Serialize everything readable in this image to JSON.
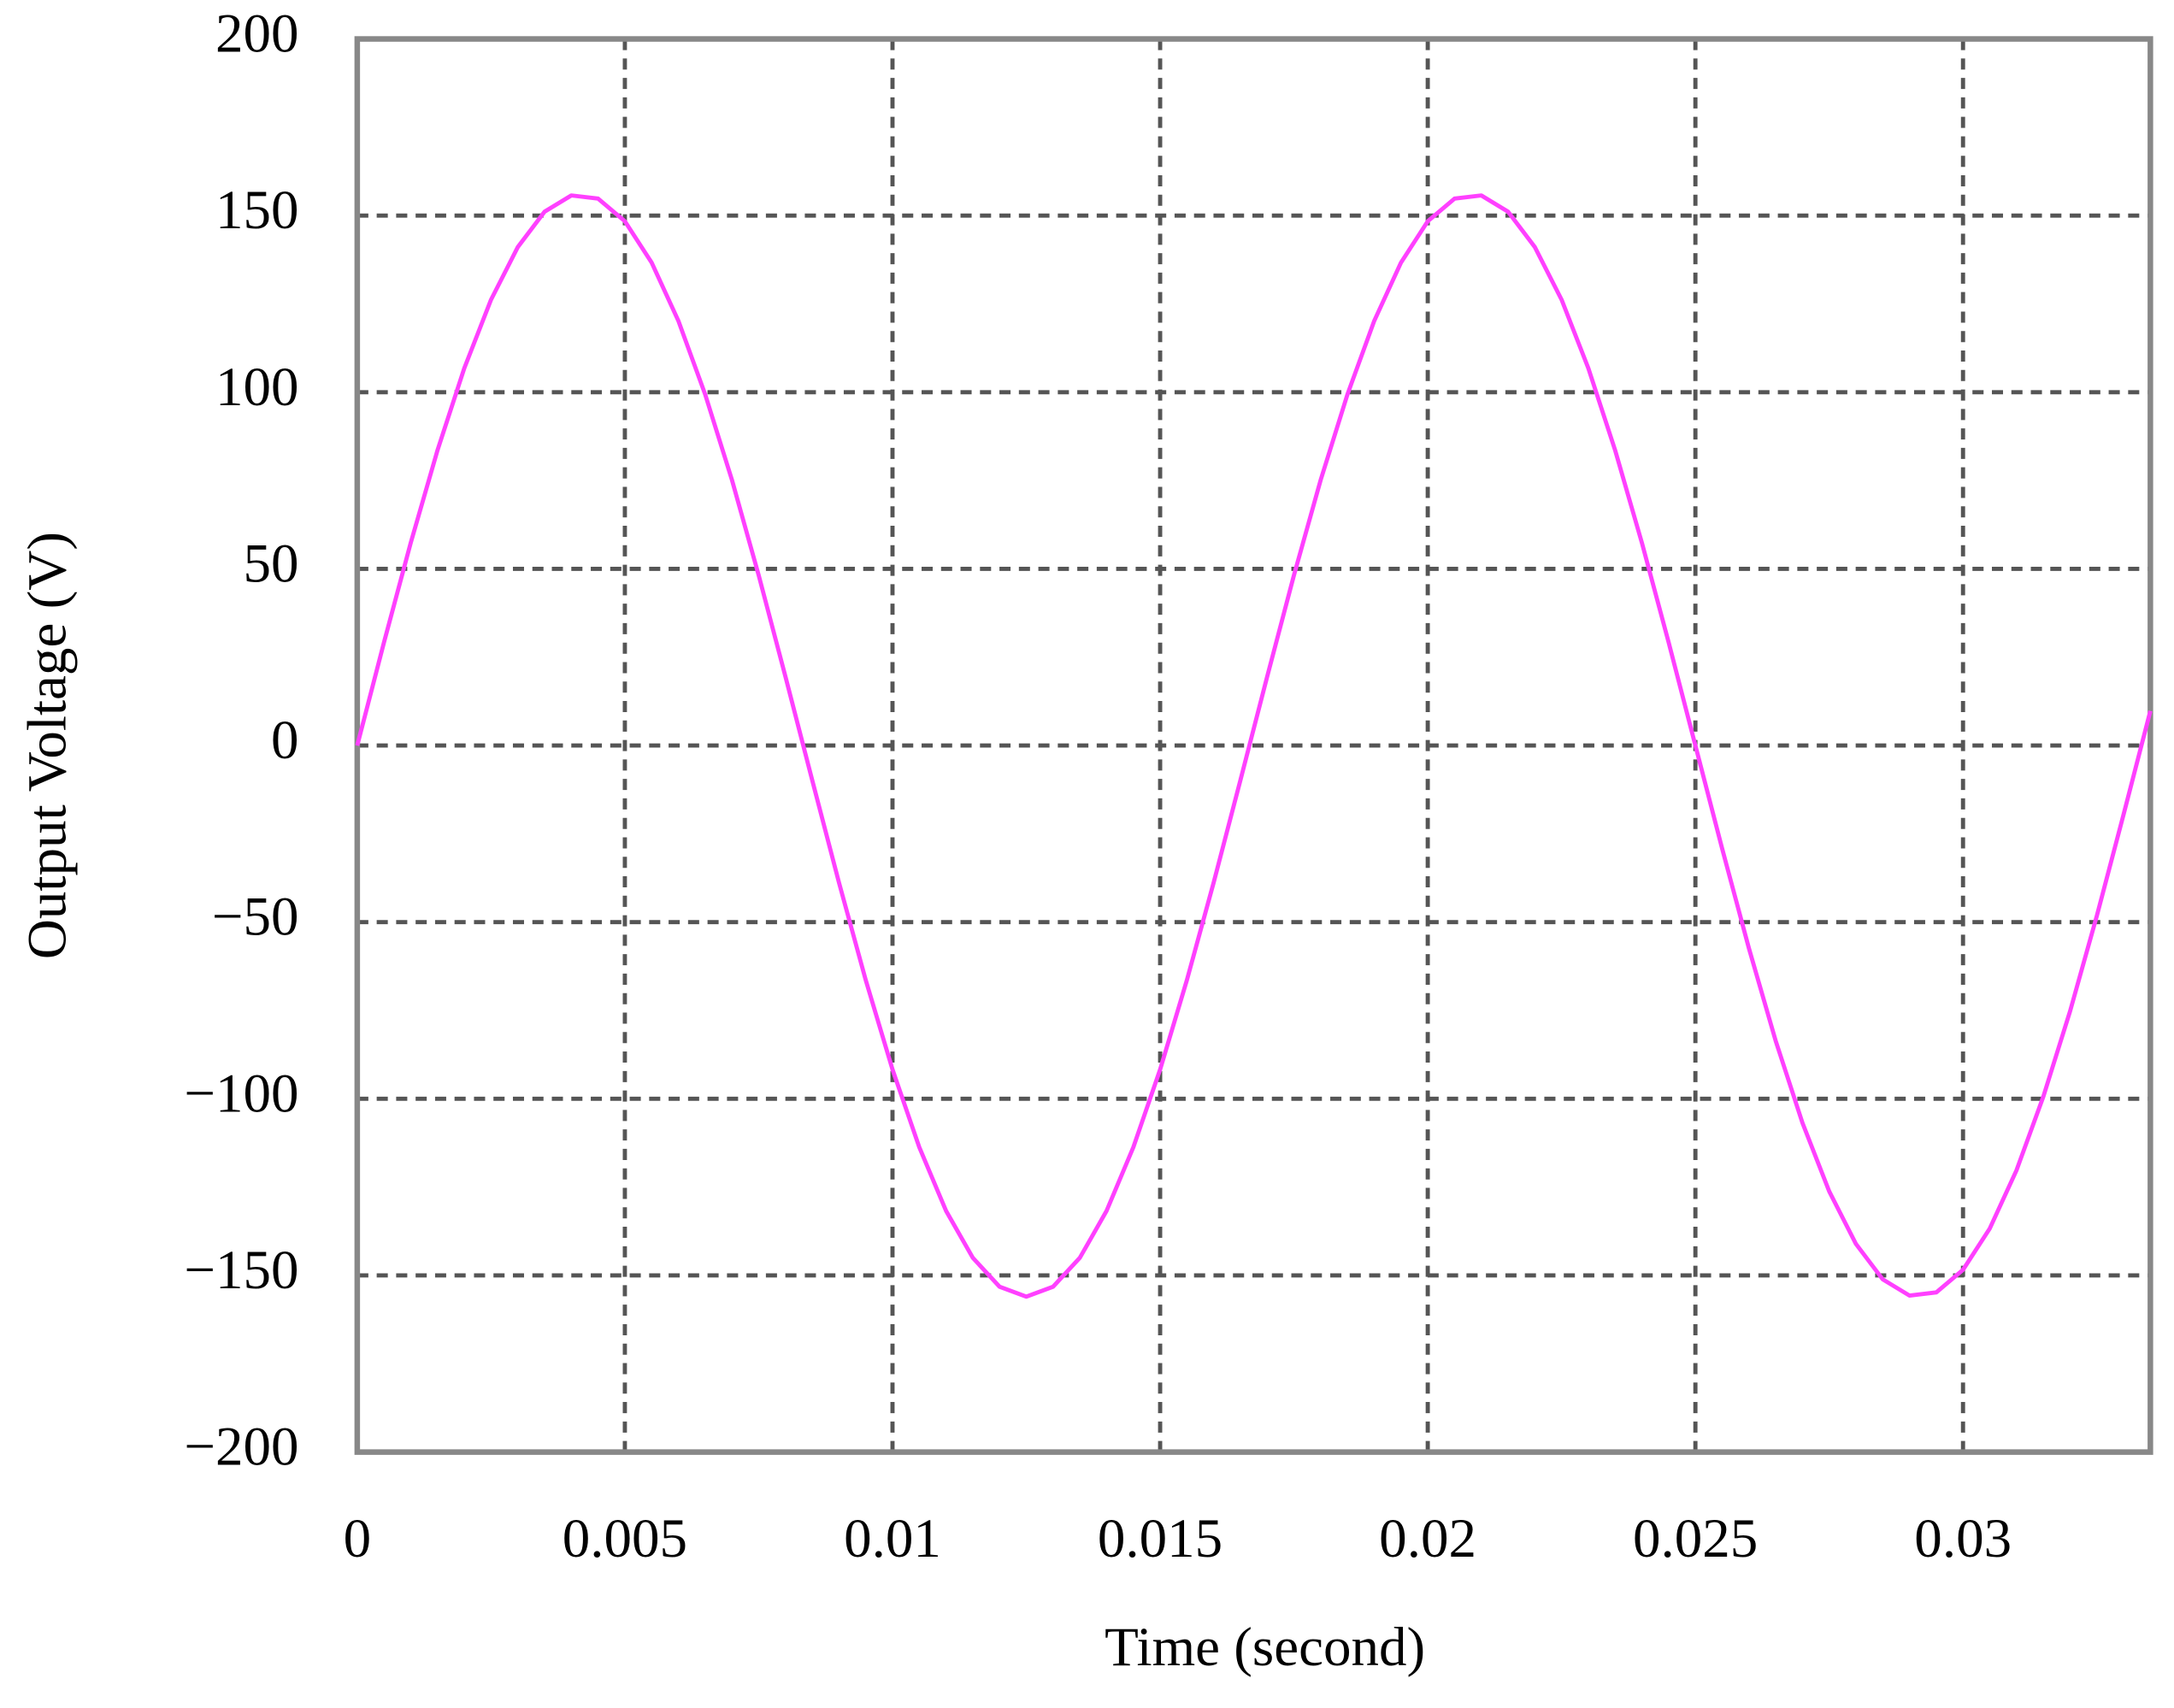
{
  "chart_data": {
    "type": "line",
    "x_label": "Time (second)",
    "y_label": "Output Voltage (V)",
    "x": [
      0,
      0.0005,
      0.001,
      0.0015,
      0.002,
      0.0025,
      0.003,
      0.0035,
      0.004,
      0.0045,
      0.005,
      0.0055,
      0.006,
      0.0065,
      0.007,
      0.0075,
      0.008,
      0.0085,
      0.009,
      0.0095,
      0.01,
      0.0105,
      0.011,
      0.0115,
      0.012,
      0.0125,
      0.013,
      0.0135,
      0.014,
      0.0145,
      0.015,
      0.0155,
      0.016,
      0.0165,
      0.017,
      0.0175,
      0.018,
      0.0185,
      0.019,
      0.0195,
      0.02,
      0.0205,
      0.021,
      0.0215,
      0.022,
      0.0225,
      0.023,
      0.0235,
      0.024,
      0.0245,
      0.025,
      0.0255,
      0.026,
      0.0265,
      0.027,
      0.0275,
      0.028,
      0.0285,
      0.029,
      0.0295,
      0.03,
      0.0305,
      0.031,
      0.0315,
      0.032,
      0.0325,
      0.033,
      0.0335
    ],
    "series": [
      {
        "color": "#ff40ff",
        "values": [
          0,
          29.2,
          57.4,
          83.6,
          106.8,
          126.2,
          141.1,
          151.1,
          155.7,
          154.8,
          148.4,
          136.7,
          120.2,
          99.4,
          75.2,
          48.2,
          19.5,
          -9.8,
          -38.8,
          -66.4,
          -91.7,
          -113.7,
          -131.7,
          -145.0,
          -153.2,
          -156.0,
          -153.2,
          -145.0,
          -131.7,
          -113.7,
          -91.7,
          -66.4,
          -38.8,
          -9.8,
          19.5,
          48.2,
          75.2,
          99.4,
          120.2,
          136.7,
          148.4,
          154.8,
          155.7,
          151.1,
          141.1,
          126.2,
          106.8,
          83.6,
          57.4,
          29.2,
          0,
          -29.2,
          -57.4,
          -83.6,
          -106.8,
          -126.2,
          -141.1,
          -151.1,
          -155.7,
          -154.8,
          -148.4,
          -136.7,
          -120.2,
          -99.4,
          -75.2,
          -48.2,
          -19.5,
          9.8
        ]
      }
    ],
    "xlim": [
      0,
      0.0335
    ],
    "ylim": [
      -200,
      200
    ],
    "xticks": [
      0,
      0.005,
      0.01,
      0.015,
      0.02,
      0.025,
      0.03
    ],
    "yticks": [
      {
        "value": -200,
        "label": "−200"
      },
      {
        "value": -150,
        "label": "−150"
      },
      {
        "value": -100,
        "label": "−100"
      },
      {
        "value": -50,
        "label": "−50"
      },
      0,
      50,
      100,
      150,
      200
    ],
    "grid": true
  }
}
